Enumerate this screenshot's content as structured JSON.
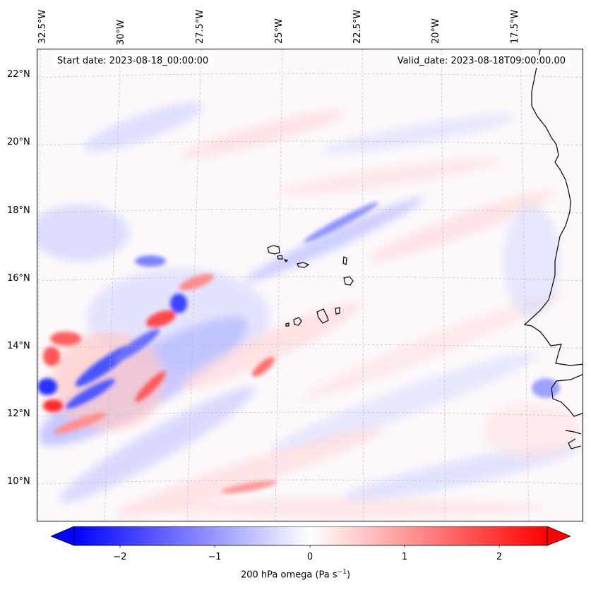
{
  "header": {
    "start_date": "Start date: 2023-08-18_00:00:00",
    "valid_date": "Valid_date: 2023-08-18T09:00:00.00"
  },
  "map": {
    "projection": "lambert-conformal",
    "gridlines": true,
    "coastline_color": "#000000",
    "longitude_labels": [
      {
        "text": "32.5°W",
        "lon": -32.5
      },
      {
        "text": "30°W",
        "lon": -30
      },
      {
        "text": "27.5°W",
        "lon": -27.5
      },
      {
        "text": "25°W",
        "lon": -25
      },
      {
        "text": "22.5°W",
        "lon": -22.5
      },
      {
        "text": "20°W",
        "lon": -20
      },
      {
        "text": "17.5°W",
        "lon": -17.5
      }
    ],
    "latitude_labels": [
      {
        "text": "22°N",
        "lat": 22
      },
      {
        "text": "20°N",
        "lat": 20
      },
      {
        "text": "18°N",
        "lat": 18
      },
      {
        "text": "16°N",
        "lat": 16
      },
      {
        "text": "14°N",
        "lat": 14
      },
      {
        "text": "12°N",
        "lat": 12
      },
      {
        "text": "10°N",
        "lat": 10
      }
    ],
    "field": "200 hPa vertical velocity (omega), diverging blue-white-red shading"
  },
  "colorbar": {
    "label": "200 hPa omega (Pa s",
    "label_sup": "−1",
    "label_end": ")",
    "range": [
      -2.7,
      2.7
    ],
    "negative_color": "#0000ff",
    "zero_color": "#ffffff",
    "positive_color": "#ff0000",
    "extend": "both",
    "ticks": [
      {
        "text": "−2",
        "value": -2
      },
      {
        "text": "−1",
        "value": -1
      },
      {
        "text": "0",
        "value": 0
      },
      {
        "text": "1",
        "value": 1
      },
      {
        "text": "2",
        "value": 2
      }
    ]
  }
}
